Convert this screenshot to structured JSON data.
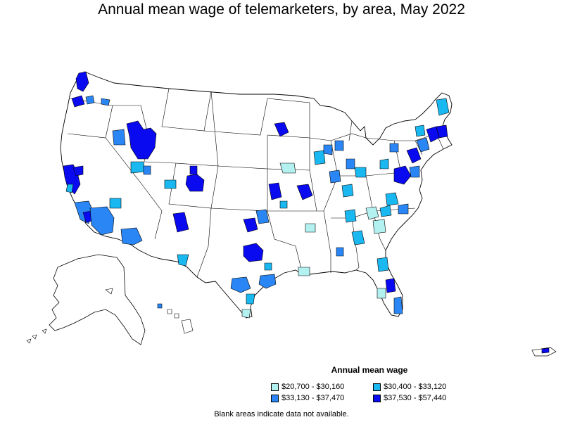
{
  "title": "Annual mean wage of telemarketers, by area, May 2022",
  "legend": {
    "title": "Annual mean wage",
    "items": [
      {
        "label": "$20,700 - $30,160",
        "color": "#b3f0f0"
      },
      {
        "label": "$30,400 - $33,120",
        "color": "#1ab8f0"
      },
      {
        "label": "$33,130 - $37,470",
        "color": "#2a86f5"
      },
      {
        "label": "$37,530 - $57,440",
        "color": "#0a0af0"
      }
    ]
  },
  "note": "Blank areas indicate data not available.",
  "colors": {
    "border": "#000000",
    "background": "#ffffff",
    "blank": "#ffffff"
  }
}
